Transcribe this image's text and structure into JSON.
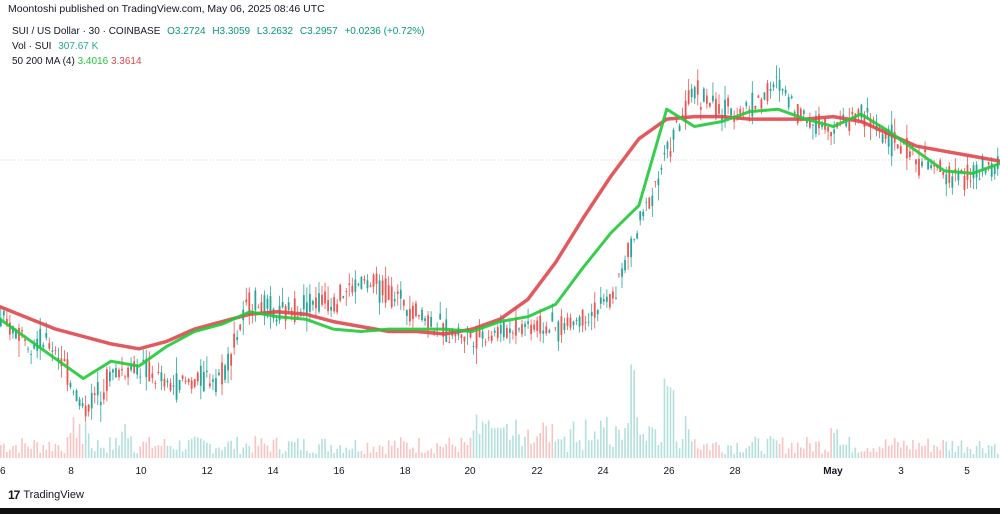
{
  "header": {
    "text": "Moontoshi published on TradingView.com, May 06, 2025 08:46 UTC"
  },
  "legend": {
    "symbol": "SUI / US Dollar · 30 · COINBASE",
    "open": "O3.2724",
    "high": "H3.3059",
    "low": "L3.2632",
    "close": "C3.2957",
    "change": "+0.0236 (+0.72%)",
    "vol_label": "Vol · SUI",
    "vol_value": "307.67 K",
    "ma_label": "50 200 MA (4)",
    "ma50_value": "3.4016",
    "ma200_value": "3.3614"
  },
  "footer": {
    "brand": "TradingView",
    "logo_icon": "tradingview-logo-icon"
  },
  "colors": {
    "ma50": "#22c93a",
    "ma200": "#e0484c",
    "up": "#26a69a",
    "down": "#ef5350",
    "price": "#131722"
  },
  "chart_data": {
    "type": "line",
    "x_ticks": [
      "6",
      "8",
      "10",
      "12",
      "14",
      "16",
      "18",
      "20",
      "22",
      "24",
      "26",
      "28",
      "May",
      "3",
      "5"
    ],
    "ylim": [
      2.2,
      3.9
    ],
    "price_path": [
      [
        0,
        2.75
      ],
      [
        2,
        2.65
      ],
      [
        3,
        2.4
      ],
      [
        4,
        2.55
      ],
      [
        5,
        2.58
      ],
      [
        6,
        2.5
      ],
      [
        7,
        2.52
      ],
      [
        8,
        2.55
      ],
      [
        9,
        2.85
      ],
      [
        10,
        2.78
      ],
      [
        11,
        2.84
      ],
      [
        12,
        2.85
      ],
      [
        13,
        2.92
      ],
      [
        14,
        2.88
      ],
      [
        15,
        2.8
      ],
      [
        16,
        2.72
      ],
      [
        17,
        2.7
      ],
      [
        18,
        2.72
      ],
      [
        19,
        2.75
      ],
      [
        20,
        2.73
      ],
      [
        21,
        2.78
      ],
      [
        22,
        2.85
      ],
      [
        23,
        3.15
      ],
      [
        24,
        3.45
      ],
      [
        25,
        3.7
      ],
      [
        26,
        3.6
      ],
      [
        27,
        3.63
      ],
      [
        28,
        3.72
      ],
      [
        29,
        3.58
      ],
      [
        30,
        3.55
      ],
      [
        31,
        3.6
      ],
      [
        32,
        3.5
      ],
      [
        33,
        3.42
      ],
      [
        34,
        3.35
      ],
      [
        35,
        3.35
      ],
      [
        35.8,
        3.38
      ],
      [
        36,
        3.4
      ]
    ],
    "ma50_path": [
      [
        0,
        2.77
      ],
      [
        3,
        2.53
      ],
      [
        4,
        2.6
      ],
      [
        5,
        2.58
      ],
      [
        6,
        2.66
      ],
      [
        7,
        2.72
      ],
      [
        8,
        2.75
      ],
      [
        9,
        2.8
      ],
      [
        10,
        2.78
      ],
      [
        11,
        2.77
      ],
      [
        12,
        2.73
      ],
      [
        13,
        2.72
      ],
      [
        14,
        2.73
      ],
      [
        15,
        2.73
      ],
      [
        16,
        2.73
      ],
      [
        17,
        2.72
      ],
      [
        18,
        2.76
      ],
      [
        19,
        2.78
      ],
      [
        20,
        2.83
      ],
      [
        21,
        2.98
      ],
      [
        22,
        3.12
      ],
      [
        23,
        3.23
      ],
      [
        24,
        3.62
      ],
      [
        25,
        3.55
      ],
      [
        26,
        3.57
      ],
      [
        27,
        3.61
      ],
      [
        28,
        3.62
      ],
      [
        29,
        3.58
      ],
      [
        30,
        3.55
      ],
      [
        31,
        3.6
      ],
      [
        32,
        3.53
      ],
      [
        33,
        3.45
      ],
      [
        34,
        3.37
      ],
      [
        35,
        3.36
      ],
      [
        36,
        3.4
      ]
    ],
    "ma200_path": [
      [
        0,
        2.82
      ],
      [
        2,
        2.73
      ],
      [
        4,
        2.67
      ],
      [
        5,
        2.65
      ],
      [
        6,
        2.68
      ],
      [
        7,
        2.73
      ],
      [
        8,
        2.76
      ],
      [
        9,
        2.79
      ],
      [
        10,
        2.8
      ],
      [
        11,
        2.79
      ],
      [
        12,
        2.76
      ],
      [
        13,
        2.74
      ],
      [
        14,
        2.72
      ],
      [
        15,
        2.72
      ],
      [
        16,
        2.71
      ],
      [
        17,
        2.73
      ],
      [
        18,
        2.77
      ],
      [
        19,
        2.85
      ],
      [
        20,
        3.0
      ],
      [
        21,
        3.18
      ],
      [
        22,
        3.35
      ],
      [
        23,
        3.5
      ],
      [
        24,
        3.58
      ],
      [
        25,
        3.59
      ],
      [
        26,
        3.59
      ],
      [
        27,
        3.58
      ],
      [
        28,
        3.58
      ],
      [
        29,
        3.58
      ],
      [
        30,
        3.59
      ],
      [
        31,
        3.57
      ],
      [
        32,
        3.52
      ],
      [
        33,
        3.47
      ],
      [
        34,
        3.45
      ],
      [
        35,
        3.43
      ],
      [
        36,
        3.41
      ]
    ]
  }
}
